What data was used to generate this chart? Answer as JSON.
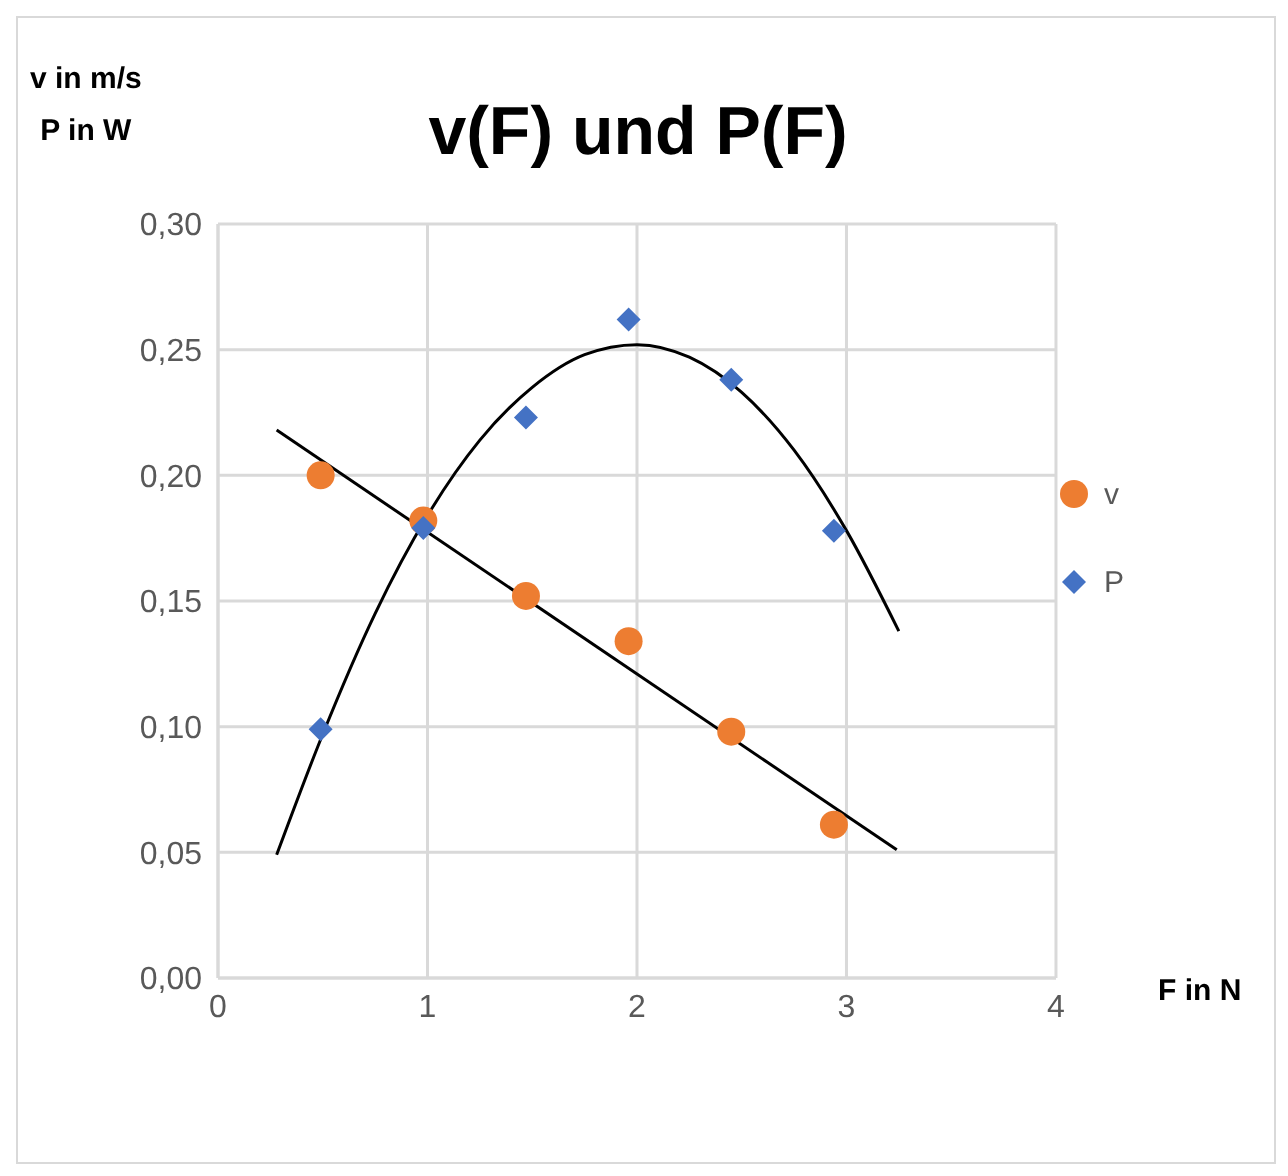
{
  "chart_data": {
    "type": "scatter",
    "title": "v(F) und P(F)",
    "ylabel": "v in m/s\nP in W",
    "xlabel": "F in N",
    "xlim": [
      0,
      4
    ],
    "xticks": [
      0,
      1,
      2,
      3,
      4
    ],
    "ylim": [
      0,
      0.3
    ],
    "yticks": [
      {
        "value": 0,
        "label": "0,00"
      },
      {
        "value": 0.05,
        "label": "0,05"
      },
      {
        "value": 0.1,
        "label": "0,10"
      },
      {
        "value": 0.15,
        "label": "0,15"
      },
      {
        "value": 0.2,
        "label": "0,20"
      },
      {
        "value": 0.25,
        "label": "0,25"
      },
      {
        "value": 0.3,
        "label": "0,30"
      }
    ],
    "grid": true,
    "legend": "right",
    "series": [
      {
        "name": "v",
        "color": "#ed7d31",
        "marker": "circle",
        "x": [
          0.49,
          0.98,
          1.47,
          1.96,
          2.45,
          2.94
        ],
        "values": [
          0.2,
          0.182,
          0.152,
          0.134,
          0.098,
          0.061
        ]
      },
      {
        "name": "P",
        "color": "#4472c4",
        "marker": "diamond",
        "x": [
          0.49,
          0.98,
          1.47,
          1.96,
          2.45,
          2.94
        ],
        "values": [
          0.099,
          0.179,
          0.223,
          0.262,
          0.238,
          0.178
        ]
      },
      {
        "type": "line",
        "color": "#000000",
        "marker": "none",
        "x": [
          0.28,
          3.24
        ],
        "values": [
          0.218,
          0.051
        ]
      },
      {
        "type": "line",
        "color": "#000000",
        "marker": "none",
        "x": [
          0.28,
          0.5,
          0.75,
          1,
          1.25,
          1.5,
          1.75,
          2,
          2.25,
          2.5,
          2.75,
          3,
          3.25
        ],
        "values": [
          0.049,
          0.097,
          0.145,
          0.184,
          0.214,
          0.235,
          0.248,
          0.252,
          0.247,
          0.233,
          0.21,
          0.178,
          0.138
        ]
      }
    ]
  }
}
